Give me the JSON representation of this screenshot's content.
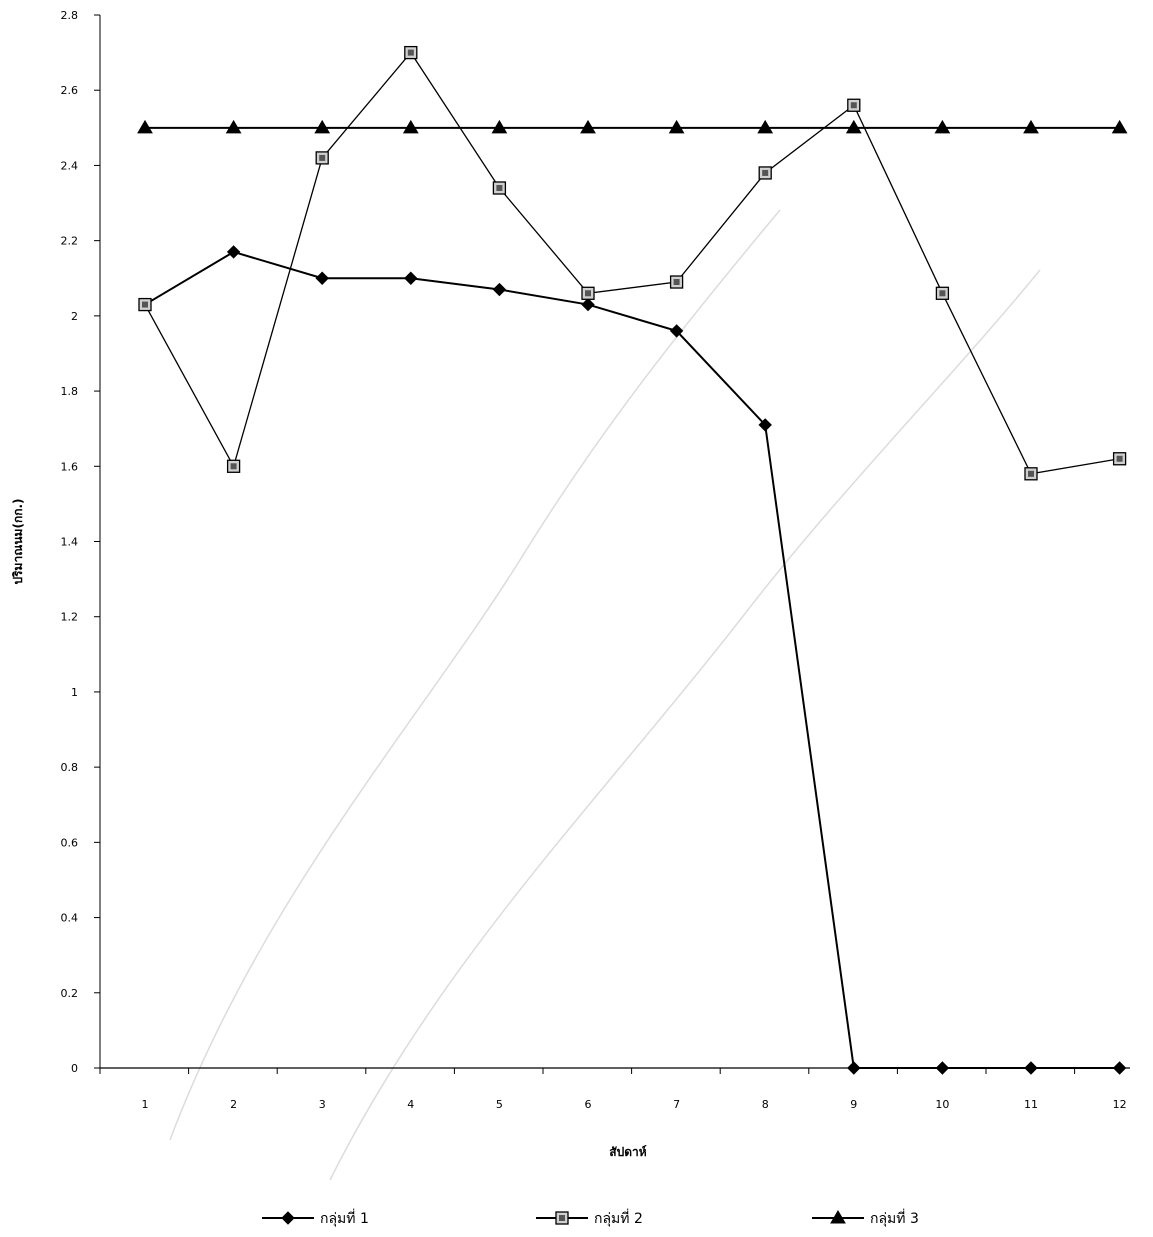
{
  "chart_data": {
    "type": "line",
    "title": "",
    "xlabel": "สัปดาห์",
    "ylabel": "ปริมาณนม(กก.)",
    "categories": [
      "1",
      "2",
      "3",
      "4",
      "5",
      "6",
      "7",
      "8",
      "9",
      "10",
      "11",
      "12"
    ],
    "ylim": [
      0,
      2.8
    ],
    "yticks": [
      "0",
      "0.2",
      "0.4",
      "0.6",
      "0.8",
      "1",
      "1.2",
      "1.4",
      "1.6",
      "1.8",
      "2",
      "2.2",
      "2.4",
      "2.6",
      "2.8"
    ],
    "grid": false,
    "legend_position": "bottom",
    "series": [
      {
        "name": "กลุ่มที่ 1",
        "marker": "diamond",
        "color": "#000000",
        "values": [
          2.03,
          2.17,
          2.1,
          2.1,
          2.07,
          2.03,
          1.96,
          1.71,
          0.0,
          0.0,
          0.0,
          0.0
        ]
      },
      {
        "name": "กลุ่มที่ 2",
        "marker": "square",
        "color": "#000000",
        "values": [
          2.03,
          1.6,
          2.42,
          2.7,
          2.34,
          2.06,
          2.09,
          2.38,
          2.56,
          2.06,
          1.58,
          1.62
        ]
      },
      {
        "name": "กลุ่มที่ 3",
        "marker": "triangle",
        "color": "#000000",
        "values": [
          2.5,
          2.5,
          2.5,
          2.5,
          2.5,
          2.5,
          2.5,
          2.5,
          2.5,
          2.5,
          2.5,
          2.5
        ]
      }
    ]
  }
}
